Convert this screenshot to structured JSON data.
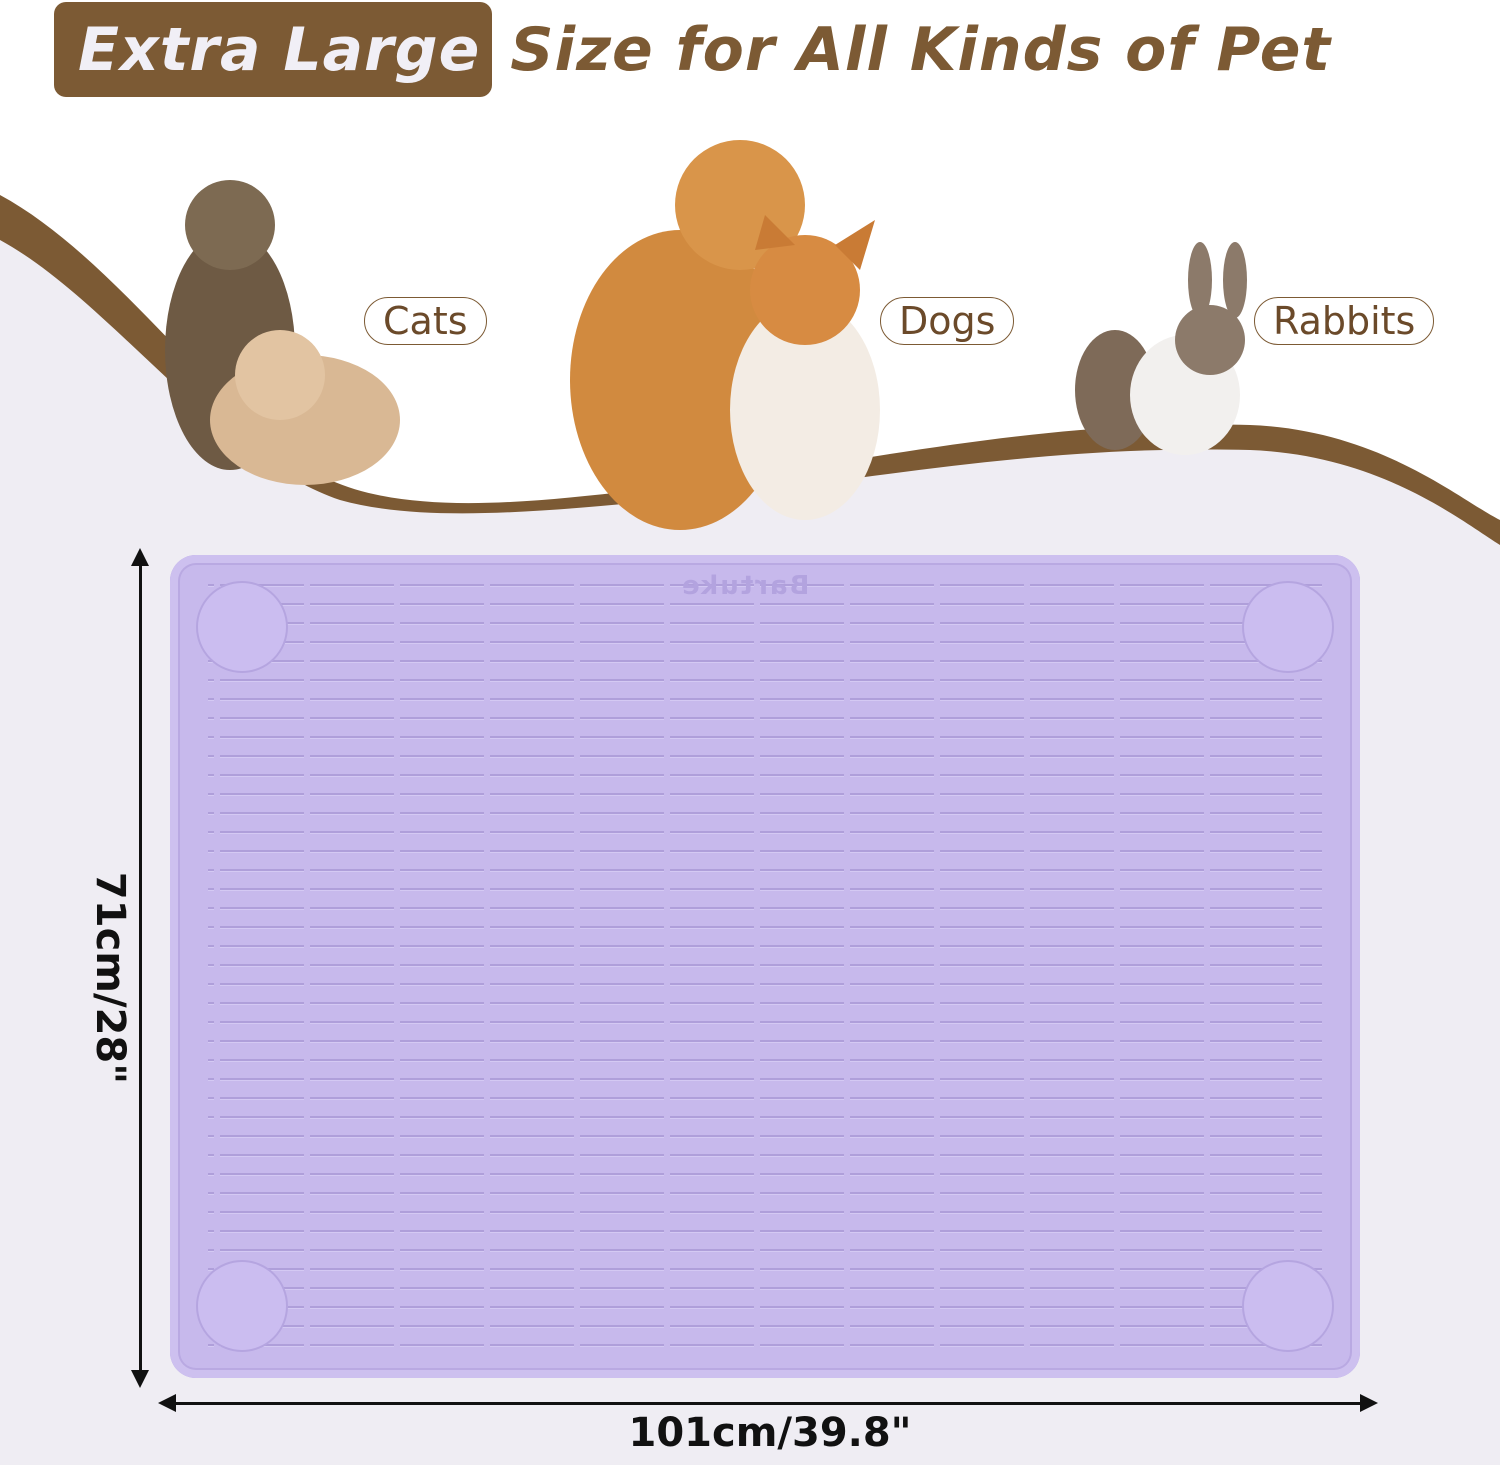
{
  "headline": {
    "highlight": "Extra Large",
    "rest": "Size for All Kinds of Pet"
  },
  "pets": [
    {
      "label": "Cats"
    },
    {
      "label": "Dogs"
    },
    {
      "label": "Rabbits"
    }
  ],
  "mat": {
    "logo": "Bartuke",
    "color": "#c7b9ec"
  },
  "dimensions": {
    "height": "71cm/28\"",
    "width": "101cm/39.8\""
  },
  "colors": {
    "brand_brown": "#7c5a34",
    "background": "#efedf3"
  }
}
